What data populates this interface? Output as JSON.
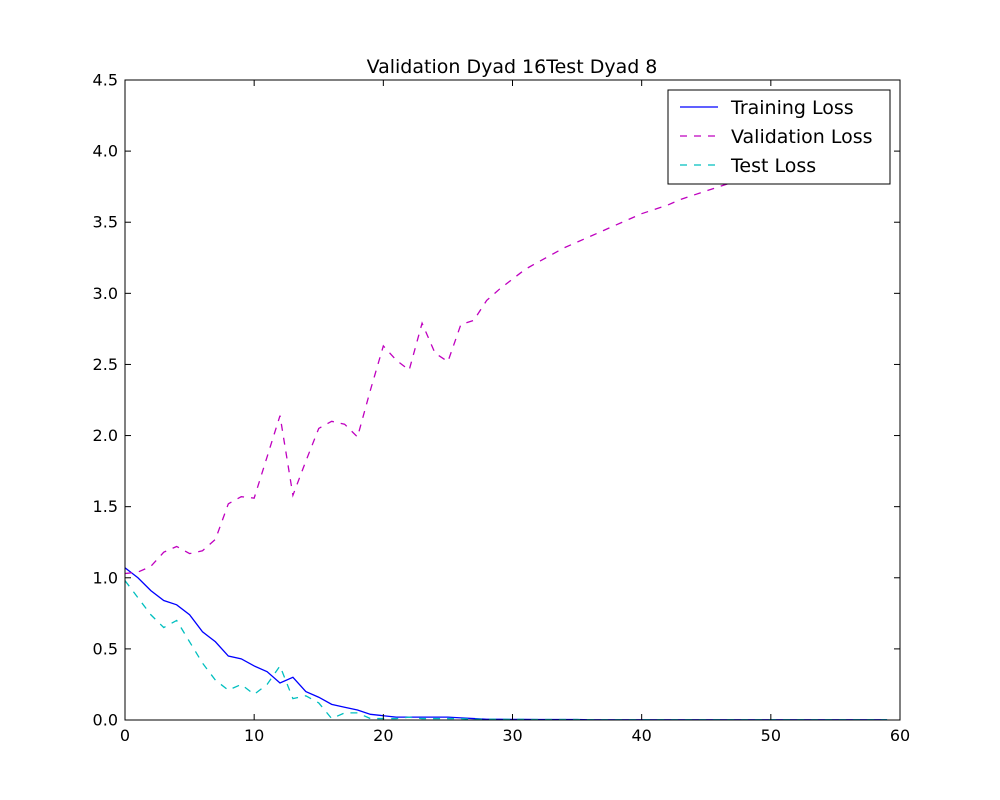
{
  "chart_data": {
    "type": "line",
    "title": "Validation Dyad 16\u0001Test Dyad 8",
    "xlabel": "",
    "ylabel": "",
    "xlim": [
      0,
      60
    ],
    "ylim": [
      0,
      4.5
    ],
    "xticks": [
      0,
      10,
      20,
      30,
      40,
      50,
      60
    ],
    "yticks": [
      0.0,
      0.5,
      1.0,
      1.5,
      2.0,
      2.5,
      3.0,
      3.5,
      4.0,
      4.5
    ],
    "xtick_labels": [
      "0",
      "10",
      "20",
      "30",
      "40",
      "50",
      "60"
    ],
    "ytick_labels": [
      "0.0",
      "0.5",
      "1.0",
      "1.5",
      "2.0",
      "2.5",
      "3.0",
      "3.5",
      "4.0",
      "4.5"
    ],
    "grid": false,
    "legend_position": "top-right",
    "series": [
      {
        "name": "Training Loss",
        "color": "#0000ff",
        "style": "solid",
        "x": [
          0,
          1,
          2,
          3,
          4,
          5,
          6,
          7,
          8,
          9,
          10,
          11,
          12,
          13,
          14,
          15,
          16,
          17,
          18,
          19,
          20,
          21,
          22,
          23,
          24,
          25,
          26,
          27,
          28,
          29,
          30,
          31,
          32,
          33,
          34,
          35,
          36,
          37,
          38,
          39,
          40,
          41,
          42,
          43,
          44,
          45,
          46,
          47,
          48,
          49,
          50,
          51,
          52,
          53,
          54,
          55,
          56,
          57,
          58,
          59
        ],
        "values": [
          1.07,
          1.0,
          0.91,
          0.84,
          0.81,
          0.74,
          0.62,
          0.55,
          0.45,
          0.43,
          0.38,
          0.34,
          0.26,
          0.3,
          0.2,
          0.16,
          0.11,
          0.09,
          0.07,
          0.04,
          0.03,
          0.02,
          0.02,
          0.02,
          0.02,
          0.02,
          0.015,
          0.01,
          0.005,
          0.005,
          0.004,
          0.004,
          0.003,
          0.003,
          0.003,
          0.003,
          0.002,
          0.002,
          0.002,
          0.002,
          0.002,
          0.002,
          0.002,
          0.002,
          0.002,
          0.002,
          0.002,
          0.002,
          0.002,
          0.002,
          0.002,
          0.002,
          0.002,
          0.002,
          0.002,
          0.002,
          0.002,
          0.002,
          0.002,
          0.002
        ]
      },
      {
        "name": "Validation Loss",
        "color": "#bf00bf",
        "style": "dashed",
        "x": [
          0,
          1,
          2,
          3,
          4,
          5,
          6,
          7,
          8,
          9,
          10,
          11,
          12,
          13,
          14,
          15,
          16,
          17,
          18,
          19,
          20,
          21,
          22,
          23,
          24,
          25,
          26,
          27,
          28,
          29,
          30,
          31,
          32,
          33,
          34,
          35,
          36,
          37,
          38,
          39,
          40,
          41,
          42,
          43,
          44,
          45,
          46,
          47,
          48,
          49,
          50,
          51,
          52,
          53,
          54,
          55,
          56,
          57,
          58,
          59
        ],
        "values": [
          1.03,
          1.04,
          1.08,
          1.18,
          1.22,
          1.17,
          1.19,
          1.27,
          1.52,
          1.57,
          1.56,
          1.85,
          2.14,
          1.58,
          1.82,
          2.05,
          2.1,
          2.08,
          1.99,
          2.32,
          2.63,
          2.53,
          2.46,
          2.79,
          2.58,
          2.52,
          2.78,
          2.81,
          2.95,
          3.03,
          3.1,
          3.17,
          3.22,
          3.27,
          3.32,
          3.36,
          3.4,
          3.44,
          3.48,
          3.52,
          3.56,
          3.59,
          3.62,
          3.66,
          3.69,
          3.72,
          3.75,
          3.78,
          3.81,
          3.83,
          3.86,
          3.88,
          3.91,
          3.93,
          3.95,
          3.98,
          4.0,
          4.02,
          4.04,
          4.06
        ]
      },
      {
        "name": "Test Loss",
        "color": "#00bfbf",
        "style": "dashed",
        "x": [
          0,
          1,
          2,
          3,
          4,
          5,
          6,
          7,
          8,
          9,
          10,
          11,
          12,
          13,
          14,
          15,
          16,
          17,
          18,
          19,
          20,
          21,
          22,
          23,
          24,
          25,
          26,
          27,
          28,
          29,
          30,
          31,
          32,
          33,
          34,
          35,
          36,
          37,
          38,
          39,
          40,
          41,
          42,
          43,
          44,
          45,
          46,
          47,
          48,
          49,
          50,
          51,
          52,
          53,
          54,
          55,
          56,
          57,
          58,
          59
        ],
        "values": [
          0.98,
          0.86,
          0.74,
          0.65,
          0.7,
          0.55,
          0.4,
          0.28,
          0.21,
          0.25,
          0.18,
          0.25,
          0.38,
          0.15,
          0.17,
          0.12,
          0.01,
          0.05,
          0.05,
          0.01,
          0.01,
          0.01,
          0.02,
          0.01,
          0.01,
          0.01,
          0.01,
          0.005,
          0.005,
          0.005,
          0.004,
          0.004,
          0.003,
          0.003,
          0.003,
          0.003,
          0.002,
          0.002,
          0.002,
          0.002,
          0.002,
          0.002,
          0.002,
          0.002,
          0.002,
          0.002,
          0.002,
          0.002,
          0.002,
          0.002,
          0.002,
          0.002,
          0.002,
          0.002,
          0.002,
          0.002,
          0.002,
          0.002,
          0.002,
          0.002
        ]
      }
    ]
  }
}
